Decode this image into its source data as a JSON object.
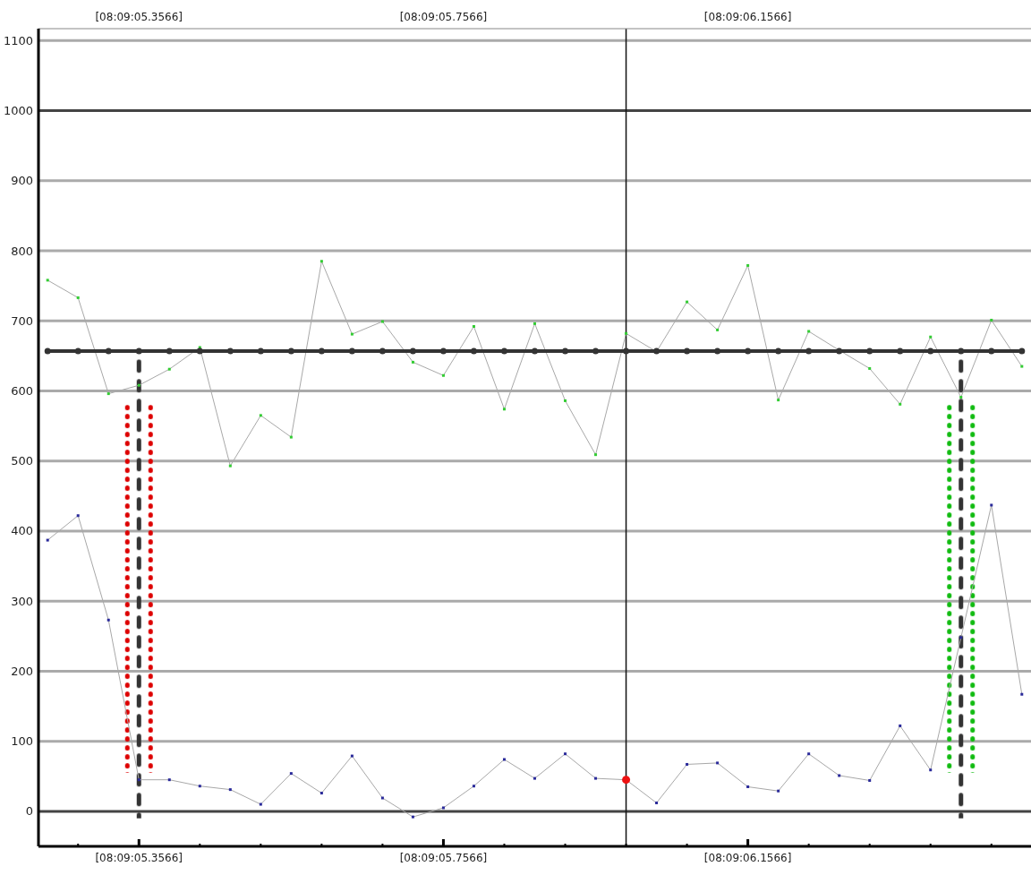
{
  "chart_data": {
    "type": "line",
    "categories": [
      null,
      null,
      null,
      "[08:09:05.3566]",
      null,
      null,
      null,
      null,
      null,
      null,
      null,
      null,
      null,
      "[08:09:05.7566]",
      null,
      null,
      null,
      null,
      null,
      null,
      null,
      null,
      null,
      "[08:09:06.1566]",
      null,
      null,
      null,
      null,
      null,
      null,
      null,
      null,
      null
    ],
    "ylim": [
      -50,
      1117
    ],
    "yticks": [
      0,
      100,
      200,
      300,
      400,
      500,
      600,
      700,
      800,
      900,
      1000,
      1100
    ],
    "grid": "y",
    "series": [
      {
        "color": "#a8a8a8",
        "marker": "square",
        "colors": [
          "#33cc33",
          "#33cc33",
          "#33cc33",
          "#33cc33",
          "#33cc33",
          "#33cc33",
          "#33cc33",
          "#33cc33",
          "#33cc33",
          "#33cc33",
          "#33cc33",
          "#33cc33",
          "#33cc33",
          "#33cc33",
          "#33cc33",
          "#33cc33",
          "#33cc33",
          "#33cc33",
          "#33cc33",
          "#33cc33",
          "#33cc33",
          "#33cc33",
          "#33cc33",
          "#33cc33",
          "#33cc33",
          "#33cc33",
          "#33cc33",
          "#33cc33",
          "#33cc33",
          "#33cc33",
          "#33cc33",
          "#33cc33",
          "#33cc33"
        ],
        "values": [
          758,
          733,
          596,
          608,
          631,
          662,
          493,
          565,
          534,
          785,
          681,
          699,
          641,
          622,
          692,
          574,
          696,
          586,
          509,
          682,
          656,
          727,
          687,
          779,
          587,
          685,
          658,
          632,
          581,
          677,
          591,
          701,
          635
        ]
      },
      {
        "color": "#a8a8a8",
        "marker": "square",
        "colors": [
          "#2a2a9a",
          "#2a2a9a",
          "#2a2a9a",
          "#2a2a9a",
          "#2a2a9a",
          "#2a2a9a",
          "#2a2a9a",
          "#2a2a9a",
          "#2a2a9a",
          "#2a2a9a",
          "#2a2a9a",
          "#2a2a9a",
          "#2a2a9a",
          "#2a2a9a",
          "#2a2a9a",
          "#2a2a9a",
          "#2a2a9a",
          "#2a2a9a",
          "#2a2a9a",
          "#2a2a9a",
          "#2a2a9a",
          "#2a2a9a",
          "#2a2a9a",
          "#2a2a9a",
          "#2a2a9a",
          "#2a2a9a",
          "#2a2a9a",
          "#2a2a9a",
          "#2a2a9a",
          "#2a2a9a",
          "#2a2a9a",
          "#2a2a9a",
          "#2a2a9a"
        ],
        "values": [
          387,
          422,
          273,
          45,
          45,
          36,
          31,
          10,
          54,
          26,
          79,
          19,
          -8,
          5,
          36,
          74,
          47,
          82,
          47,
          45,
          12,
          67,
          69,
          35,
          29,
          82,
          51,
          44,
          122,
          59,
          248,
          437,
          167
        ]
      },
      {
        "color": "#333333",
        "marker": "circle",
        "values": [
          657,
          657,
          657,
          657,
          657,
          657,
          657,
          657,
          657,
          657,
          657,
          657,
          657,
          657,
          657,
          657,
          657,
          657,
          657,
          657,
          657,
          657,
          657,
          657,
          657,
          657,
          657,
          657,
          657,
          657,
          657,
          657,
          657
        ]
      },
      {
        "type": "bar",
        "color": "#dd0000",
        "line_style": "dotted",
        "colors": [
          null,
          null,
          null,
          null,
          null,
          null,
          null,
          null,
          null,
          null,
          null,
          null,
          null,
          null,
          null,
          null,
          null,
          null,
          null,
          null,
          null,
          null,
          null,
          null,
          null,
          null,
          null,
          null,
          null,
          null,
          "#11bb11",
          null,
          null
        ],
        "base": [
          null,
          null,
          null,
          55,
          null,
          null,
          null,
          null,
          null,
          null,
          null,
          null,
          null,
          null,
          null,
          null,
          null,
          null,
          null,
          null,
          null,
          null,
          null,
          null,
          null,
          null,
          null,
          null,
          null,
          null,
          55,
          null,
          null
        ],
        "values": [
          null,
          null,
          null,
          525,
          null,
          null,
          null,
          null,
          null,
          null,
          null,
          null,
          null,
          null,
          null,
          null,
          null,
          null,
          null,
          null,
          null,
          null,
          null,
          null,
          null,
          null,
          null,
          null,
          null,
          null,
          525,
          null,
          null
        ]
      },
      {
        "type": "bar",
        "color": "#333333",
        "line_style": "dashed",
        "base": [
          null,
          null,
          null,
          -10,
          null,
          null,
          null,
          null,
          null,
          null,
          null,
          null,
          null,
          null,
          null,
          null,
          null,
          null,
          null,
          null,
          null,
          null,
          null,
          null,
          null,
          null,
          null,
          null,
          null,
          null,
          -10,
          null,
          null
        ],
        "values": [
          null,
          null,
          null,
          655,
          null,
          null,
          null,
          null,
          null,
          null,
          null,
          null,
          null,
          null,
          null,
          null,
          null,
          null,
          null,
          null,
          null,
          null,
          null,
          null,
          null,
          null,
          null,
          null,
          null,
          null,
          655,
          null,
          null
        ]
      },
      {
        "type": "bar",
        "color": "#dd0000",
        "line_style": "dotted",
        "colors": [
          null,
          null,
          null,
          null,
          null,
          null,
          null,
          null,
          null,
          null,
          null,
          null,
          null,
          null,
          null,
          null,
          null,
          null,
          null,
          null,
          null,
          null,
          null,
          null,
          null,
          null,
          null,
          null,
          null,
          null,
          "#11bb11",
          null,
          null
        ],
        "base": [
          null,
          null,
          null,
          55,
          null,
          null,
          null,
          null,
          null,
          null,
          null,
          null,
          null,
          null,
          null,
          null,
          null,
          null,
          null,
          null,
          null,
          null,
          null,
          null,
          null,
          null,
          null,
          null,
          null,
          null,
          55,
          null,
          null
        ],
        "values": [
          null,
          null,
          null,
          525,
          null,
          null,
          null,
          null,
          null,
          null,
          null,
          null,
          null,
          null,
          null,
          null,
          null,
          null,
          null,
          null,
          null,
          null,
          null,
          null,
          null,
          null,
          null,
          null,
          null,
          null,
          525,
          null,
          null
        ]
      },
      {
        "type": "bar",
        "color": "#111111",
        "line_style": "solid",
        "base": [
          null,
          null,
          null,
          null,
          null,
          null,
          null,
          null,
          null,
          null,
          null,
          null,
          null,
          null,
          null,
          null,
          null,
          null,
          null,
          -50,
          null,
          null,
          null,
          null,
          null,
          null,
          null,
          null,
          null,
          null,
          null,
          null,
          null
        ],
        "values": [
          null,
          null,
          null,
          null,
          null,
          null,
          null,
          null,
          null,
          null,
          null,
          null,
          null,
          null,
          null,
          null,
          null,
          null,
          null,
          1167,
          null,
          null,
          null,
          null,
          null,
          null,
          null,
          null,
          null,
          null,
          null,
          null,
          null
        ]
      },
      {
        "type": "scatter",
        "color": "#ee1111",
        "marker": "circle",
        "values": [
          null,
          null,
          null,
          null,
          null,
          null,
          null,
          null,
          null,
          null,
          null,
          null,
          null,
          null,
          null,
          null,
          null,
          null,
          null,
          45,
          null,
          null,
          null,
          null,
          null,
          null,
          null,
          null,
          null,
          null,
          null,
          null,
          null
        ]
      }
    ]
  }
}
